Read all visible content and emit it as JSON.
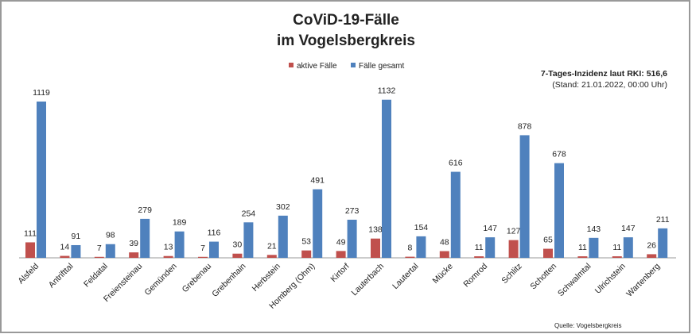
{
  "chart_data": {
    "type": "bar",
    "title": [
      "CoViD-19-Fälle",
      "im Vogelsbergkreis"
    ],
    "categories": [
      "Alsfeld",
      "Antrifttal",
      "Feldatal",
      "Freiensteinau",
      "Gemünden",
      "Grebenau",
      "Grebenhain",
      "Herbstein",
      "Homberg (Ohm)",
      "Kirtorf",
      "Lauterbach",
      "Lautertal",
      "Mücke",
      "Romrod",
      "Schlitz",
      "Schotten",
      "Schwalmtal",
      "Ulrichstein",
      "Wartenberg"
    ],
    "series": [
      {
        "name": "aktive Fälle",
        "color": "#c0504d",
        "values": [
          111,
          14,
          7,
          39,
          13,
          7,
          30,
          21,
          53,
          49,
          138,
          8,
          48,
          11,
          127,
          65,
          11,
          11,
          26
        ]
      },
      {
        "name": "Fälle gesamt",
        "color": "#4f81bd",
        "values": [
          1119,
          91,
          98,
          279,
          189,
          116,
          254,
          302,
          491,
          273,
          1132,
          154,
          616,
          147,
          878,
          678,
          143,
          147,
          211
        ]
      }
    ],
    "ylim": [
      0,
      1132
    ],
    "grid": false,
    "legend": "top-center",
    "annotation": {
      "line1": "7-Tages-Inzidenz laut RKI: 516,6",
      "line2": "(Stand: 21.01.2022, 00:00 Uhr)"
    },
    "source": "Quelle: Vogelsbergkreis"
  }
}
